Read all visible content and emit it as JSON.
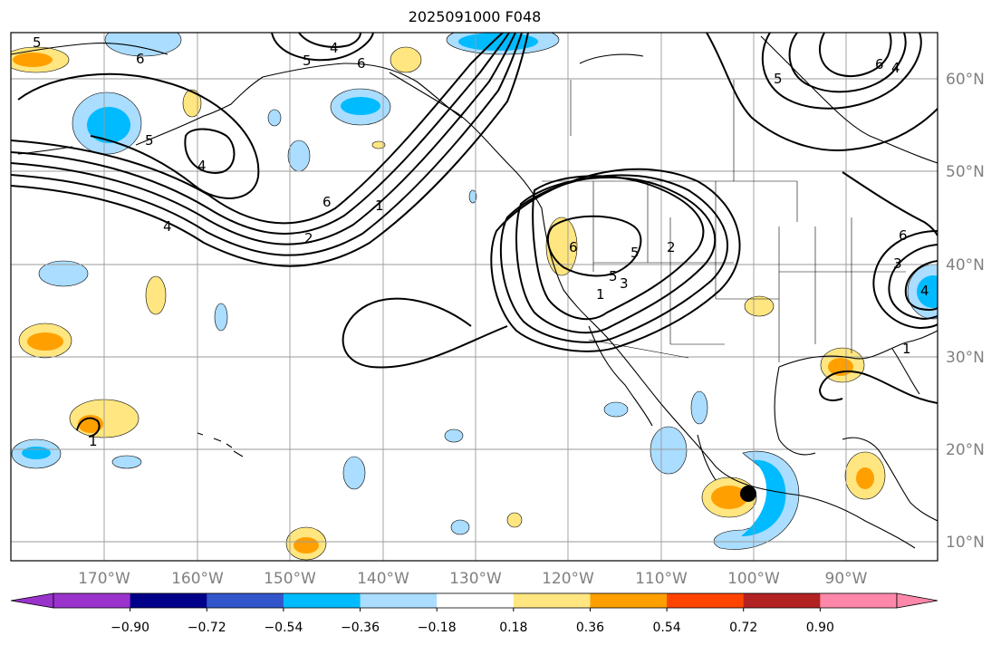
{
  "title": "2025091000 F048",
  "lon_ticks": [
    "170°W",
    "160°W",
    "150°W",
    "140°W",
    "130°W",
    "120°W",
    "110°W",
    "100°W",
    "90°W"
  ],
  "lat_ticks": [
    "60°N",
    "50°N",
    "40°N",
    "30°N",
    "20°N",
    "10°N"
  ],
  "colorbar": {
    "colors": [
      "#9933cc",
      "#000088",
      "#3355cc",
      "#00bbff",
      "#aaddff",
      "#ffffff",
      "#ffe680",
      "#ffa000",
      "#ff4400",
      "#b22222",
      "#ff88aa"
    ],
    "under_color": "#9933cc",
    "over_color": "#ff88aa",
    "tick_labels": [
      "−0.90",
      "−0.72",
      "−0.54",
      "−0.36",
      "−0.18",
      "0.18",
      "0.36",
      "0.54",
      "0.72",
      "0.90"
    ]
  },
  "contour_labels": [
    "5",
    "6",
    "4",
    "5",
    "6",
    "5",
    "4",
    "6",
    "6",
    "4",
    "1",
    "2",
    "5",
    "6",
    "5",
    "4",
    "2",
    "3",
    "1",
    "5",
    "3",
    "4",
    "1",
    "6",
    "1"
  ],
  "marker": {
    "name": "storm-position",
    "lon": "100°W",
    "lat": "15°N"
  }
}
